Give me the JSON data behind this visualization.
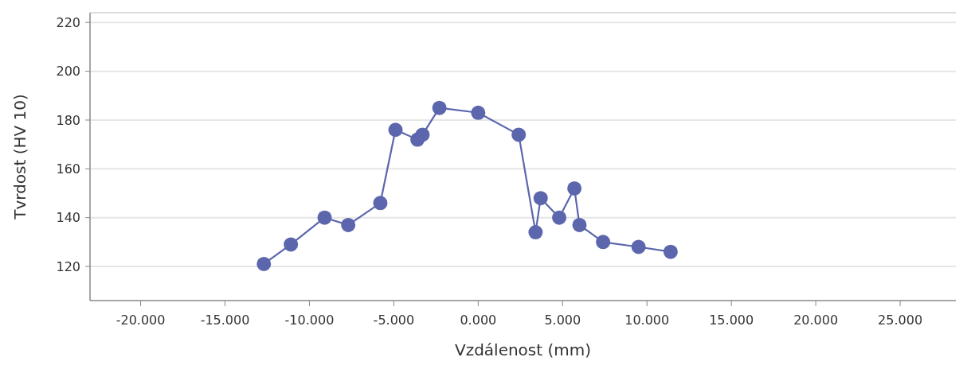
{
  "chart_data": {
    "type": "line",
    "xlabel": "Vzdálenost (mm)",
    "ylabel": "Tvrdost (HV 10)",
    "x": [
      -12.7,
      -11.1,
      -9.1,
      -7.7,
      -5.8,
      -4.9,
      -3.6,
      -3.3,
      -2.3,
      0,
      2.4,
      3.4,
      3.7,
      4.8,
      5.7,
      6.0,
      7.4,
      9.5,
      11.4
    ],
    "series": [
      {
        "color": "#5b66ad",
        "values": [
          121,
          129,
          140,
          137,
          146,
          176,
          172,
          174,
          185,
          183,
          174,
          134,
          148,
          140,
          152,
          137,
          130,
          128,
          126
        ]
      }
    ],
    "xlim": [
      -23,
      28.3
    ],
    "ylim": [
      106,
      224
    ],
    "xticks": [
      {
        "value": -20,
        "label": "-20.000"
      },
      {
        "value": -15,
        "label": "-15.000"
      },
      {
        "value": -10,
        "label": "-10.000"
      },
      {
        "value": -5,
        "label": "-5.000"
      },
      {
        "value": 0,
        "label": "0.000"
      },
      {
        "value": 5,
        "label": "5.000"
      },
      {
        "value": 10,
        "label": "10.000"
      },
      {
        "value": 15,
        "label": "15.000"
      },
      {
        "value": 20,
        "label": "20.000"
      },
      {
        "value": 25,
        "label": "25.000"
      }
    ],
    "yticks": [
      120,
      140,
      160,
      180,
      200,
      220
    ],
    "grid": "y",
    "marker": "circle",
    "line_style": "solid"
  }
}
